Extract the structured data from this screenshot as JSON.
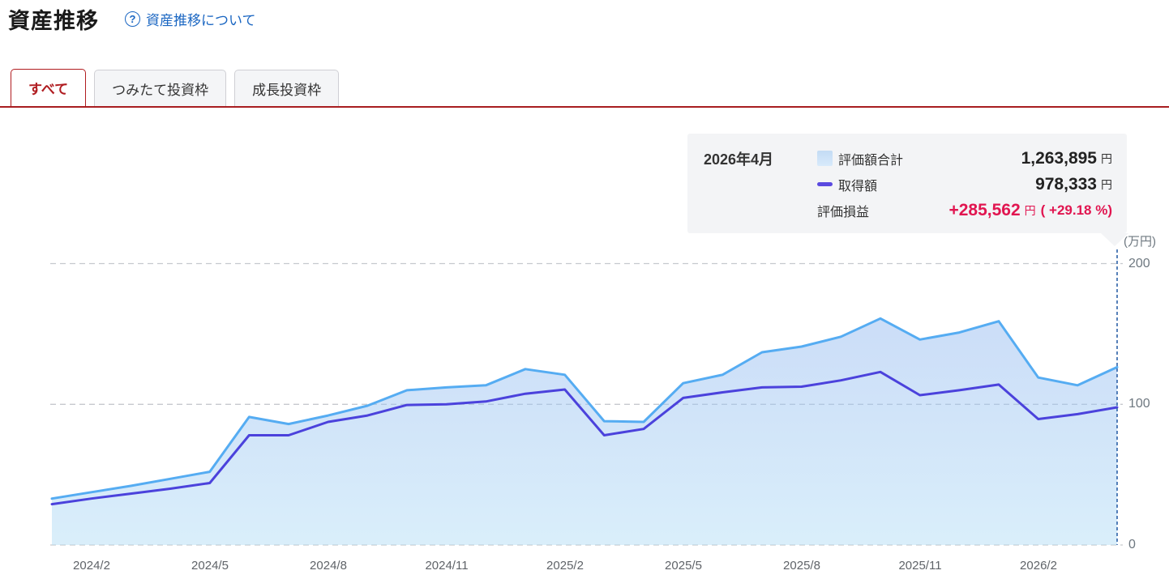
{
  "header": {
    "title": "資産推移",
    "help_icon": "?",
    "help_link": "資産推移について"
  },
  "tabs": [
    {
      "label": "すべて",
      "active": true
    },
    {
      "label": "つみたて投資枠",
      "active": false
    },
    {
      "label": "成長投資枠",
      "active": false
    }
  ],
  "tooltip": {
    "date": "2026年4月",
    "rows": [
      {
        "swatch": "area",
        "label": "評価額合計",
        "value": "1,263,895",
        "unit": "円",
        "extra": "",
        "highlight": false
      },
      {
        "swatch": "line",
        "label": "取得額",
        "value": "978,333",
        "unit": "円",
        "extra": "",
        "highlight": false
      },
      {
        "swatch": null,
        "label": "評価損益",
        "value": "+285,562",
        "unit": "円",
        "extra": "( +29.18 %)",
        "highlight": true
      }
    ]
  },
  "chart_data": {
    "type": "area",
    "title": "資産推移",
    "unit_label": "(万円)",
    "ylim": [
      0,
      200
    ],
    "y_ticks": [
      0,
      100,
      200
    ],
    "grid": "dashed-horizontal",
    "x": [
      "2024/1",
      "2024/2",
      "2024/3",
      "2024/4",
      "2024/5",
      "2024/6",
      "2024/7",
      "2024/8",
      "2024/9",
      "2024/10",
      "2024/11",
      "2024/12",
      "2025/1",
      "2025/2",
      "2025/3",
      "2025/4",
      "2025/5",
      "2025/6",
      "2025/7",
      "2025/8",
      "2025/9",
      "2025/10",
      "2025/11",
      "2025/12",
      "2026/1",
      "2026/2",
      "2026/3",
      "2026/4"
    ],
    "x_tick_labels": [
      "2024/2",
      "2024/5",
      "2024/8",
      "2024/11",
      "2025/2",
      "2025/5",
      "2025/8",
      "2025/11",
      "2026/2"
    ],
    "series": [
      {
        "name": "評価額合計",
        "color": "#55acf2",
        "fill": true,
        "values": [
          33,
          37.5,
          42,
          47,
          52,
          91,
          86,
          92,
          99,
          110,
          112,
          113.5,
          125,
          121,
          88,
          87.5,
          115,
          121,
          137,
          141,
          148,
          161,
          146,
          151,
          159,
          119,
          113.5,
          126.39
        ]
      },
      {
        "name": "取得額",
        "color": "#4b42dc",
        "fill": false,
        "values": [
          29,
          33,
          36.5,
          40,
          44,
          78,
          78,
          87.5,
          92,
          99.5,
          100,
          102,
          107.5,
          110.5,
          78,
          82.5,
          104.5,
          108.5,
          112,
          112.5,
          117,
          123,
          106.5,
          110,
          114,
          89.5,
          93,
          97.83
        ]
      }
    ],
    "hover_index": 27,
    "hover_line_color": "#2e62a8",
    "legend_position": "tooltip-top-right"
  },
  "colors": {
    "accent_red": "#a81d20",
    "active_tab_text": "#b01c20",
    "link_blue": "#1a66c2",
    "profit_red": "#e11550",
    "gridline": "#c6c9ce",
    "axis_text": "#5f6368",
    "area_fill_top": "#cbdef6",
    "area_fill_bottom": "#daedfb",
    "tooltip_bg": "#f3f4f6"
  }
}
